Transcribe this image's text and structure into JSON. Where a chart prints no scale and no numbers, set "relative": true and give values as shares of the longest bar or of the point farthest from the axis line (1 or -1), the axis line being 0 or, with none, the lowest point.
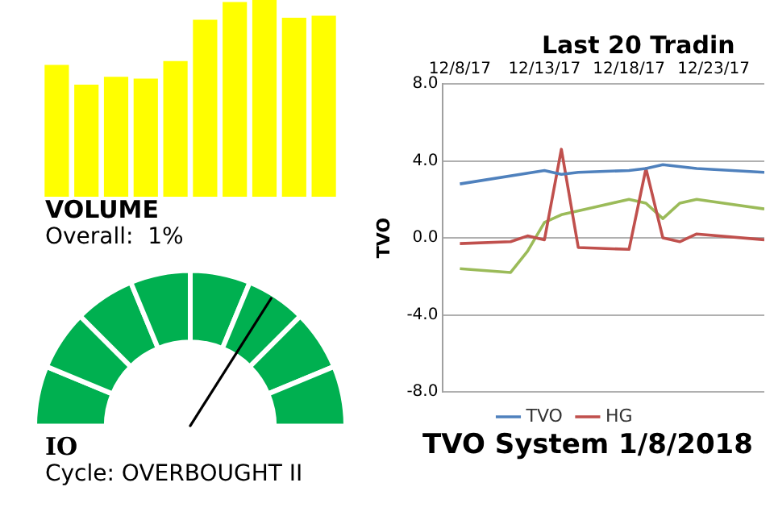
{
  "chart_data": [
    {
      "type": "bar",
      "relative": true,
      "title": "VOLUME",
      "subtitle": "Overall:  1%",
      "categories": [
        null,
        null,
        null,
        null,
        null,
        null,
        null,
        null,
        null,
        null
      ],
      "values": [
        0.67,
        0.57,
        0.61,
        0.6,
        0.69,
        0.9,
        0.99,
        1,
        0.91,
        0.92
      ],
      "color": "#ffff00"
    },
    {
      "type": "donut",
      "title": "IO",
      "subtitle": "Cycle: OVERBOUGHT II",
      "categories": [
        null,
        null,
        null,
        null,
        null,
        null,
        null,
        null
      ],
      "values": [
        12.5,
        12.5,
        12.5,
        12.5,
        12.5,
        12.5,
        12.5,
        12.5
      ],
      "colors": [
        "#00b050",
        "#00b050",
        "#00b050",
        "#00b050",
        "#00b050",
        "#00b050",
        "#00b050",
        "#00b050"
      ]
    },
    {
      "type": "line",
      "title": "Last 20 Tradin",
      "ylabel": "TVO",
      "xlim": [
        "--12-07",
        "--12-26"
      ],
      "xticks": [
        {
          "value": "--12-08",
          "label": "12/8/17"
        },
        {
          "value": "--12-13",
          "label": "12/13/17"
        },
        {
          "value": "--12-18",
          "label": "12/18/17"
        },
        {
          "value": "--12-23",
          "label": "12/23/17"
        }
      ],
      "ylim": [
        -8,
        8
      ],
      "yticks": [
        {
          "value": -8,
          "label": "-8.0"
        },
        {
          "value": -4,
          "label": "-4.0"
        },
        {
          "value": 0,
          "label": "0.0"
        },
        {
          "value": 4,
          "label": "4.0"
        },
        {
          "value": 8,
          "label": "8.0"
        }
      ],
      "grid": "y",
      "legend": "bottom",
      "marker": "none",
      "annotations": [
        "TVO System 1/8/2018"
      ],
      "series": [
        {
          "name": "TVO",
          "color": "#4f81bd",
          "x": [
            "--12-08",
            "--12-13",
            "--12-14",
            "--12-15",
            "--12-18",
            "--12-19",
            "--12-20",
            "--12-22",
            "--12-26"
          ],
          "values": [
            2.8,
            3.5,
            3.3,
            3.4,
            3.5,
            3.6,
            3.8,
            3.6,
            3.4
          ]
        },
        {
          "name": "HG",
          "color": "#c0504d",
          "x": [
            "--12-08",
            "--12-11",
            "--12-12",
            "--12-13",
            "--12-14",
            "--12-15",
            "--12-18",
            "--12-19",
            "--12-20",
            "--12-21",
            "--12-22",
            "--12-26"
          ],
          "values": [
            -0.3,
            -0.2,
            0.1,
            -0.1,
            4.6,
            -0.5,
            -0.6,
            3.6,
            0.0,
            -0.2,
            0.2,
            -0.1
          ]
        },
        {
          "color": "#9bbb59",
          "x": [
            "--12-08",
            "--12-11",
            "--12-12",
            "--12-13",
            "--12-14",
            "--12-18",
            "--12-19",
            "--12-20",
            "--12-21",
            "--12-22",
            "--12-26"
          ],
          "values": [
            -1.6,
            -1.8,
            -0.7,
            0.8,
            1.2,
            2.0,
            1.8,
            1.0,
            1.8,
            2.0,
            1.5
          ]
        }
      ]
    }
  ]
}
